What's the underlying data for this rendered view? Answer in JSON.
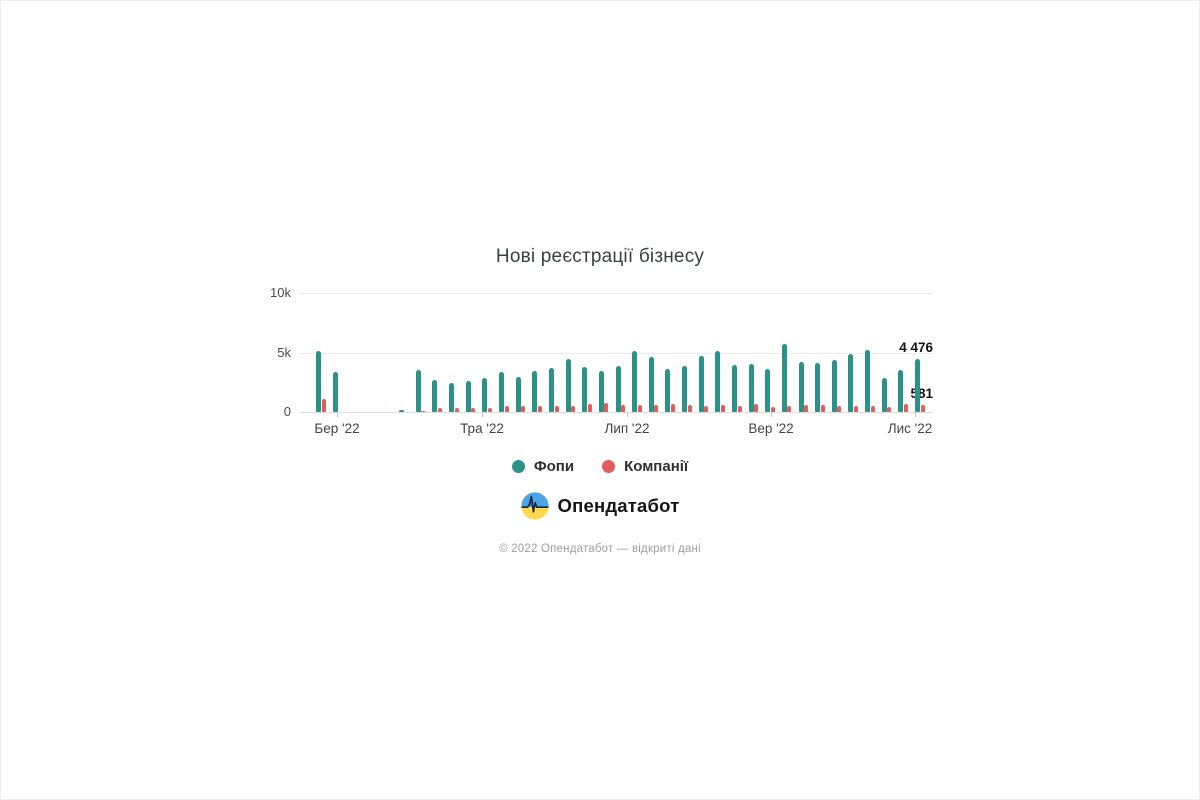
{
  "title": "Нові реєстрації бізнесу",
  "chart_data": {
    "type": "bar",
    "title": "Нові реєстрації бізнесу",
    "x_unit": "week",
    "x_tick_labels": [
      "Бер '22",
      "Тра '22",
      "Лип '22",
      "Вер '22",
      "Лис '22"
    ],
    "y_ticks": [
      "10k",
      "5k",
      "0"
    ],
    "ylim": [
      0,
      10000
    ],
    "grid": "horizontal",
    "legend_position": "bottom",
    "series": [
      {
        "name": "Фопи",
        "color": "#2a9286",
        "values": [
          5120,
          3360,
          0,
          0,
          0,
          150,
          3530,
          2730,
          2440,
          2600,
          2860,
          3360,
          2940,
          3450,
          3700,
          4450,
          3780,
          3450,
          3870,
          5130,
          4620,
          3610,
          3870,
          4710,
          5130,
          3950,
          4030,
          3610,
          5710,
          4200,
          4120,
          4370,
          4870,
          5210,
          2860,
          3530,
          4476
        ]
      },
      {
        "name": "Компанії",
        "color": "#e25c5c",
        "values": [
          1100,
          0,
          0,
          0,
          0,
          0,
          100,
          300,
          350,
          300,
          350,
          500,
          500,
          500,
          500,
          500,
          700,
          750,
          550,
          550,
          590,
          670,
          590,
          500,
          590,
          500,
          670,
          460,
          500,
          550,
          590,
          500,
          500,
          500,
          460,
          670,
          581
        ]
      }
    ],
    "annotations": [
      {
        "text": "4 476",
        "series": "Фопи",
        "point": "last"
      },
      {
        "text": "581",
        "series": "Компанії",
        "point": "last"
      }
    ]
  },
  "legend": {
    "items": [
      {
        "label": "Фопи",
        "color": "#2a9286"
      },
      {
        "label": "Компанії",
        "color": "#e25c5c"
      }
    ]
  },
  "logo": {
    "text": "Опендатабот"
  },
  "footer": {
    "text": "© 2022 Опендатабот — відкриті дані"
  },
  "colors": {
    "fop": "#2a9286",
    "company": "#e25c5c",
    "logo_blue": "#4da3e8",
    "logo_yellow": "#ffd84d"
  }
}
